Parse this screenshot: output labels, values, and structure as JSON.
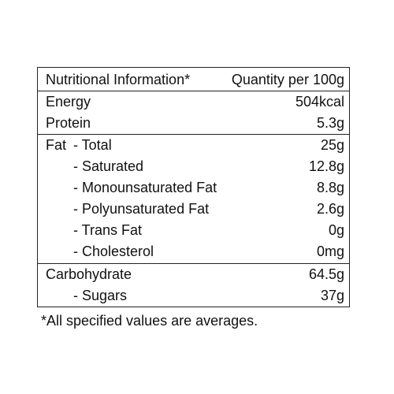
{
  "table": {
    "header": {
      "label": "Nutritional Information*",
      "value": "Quantity per 100g"
    },
    "energy": {
      "label": "Energy",
      "value": "504kcal"
    },
    "protein": {
      "label": "Protein",
      "value": "5.3g"
    },
    "fat": {
      "group_label": "Fat",
      "rows": [
        {
          "label": "- Total",
          "value": "25g"
        },
        {
          "label": "- Saturated",
          "value": "12.8g"
        },
        {
          "label": "- Monounsaturated Fat",
          "value": "8.8g"
        },
        {
          "label": "- Polyunsaturated Fat",
          "value": "2.6g"
        },
        {
          "label": "- Trans Fat",
          "value": "0g"
        },
        {
          "label": "- Cholesterol",
          "value": "0mg"
        }
      ]
    },
    "carbohydrate": {
      "label": "Carbohydrate",
      "value": "64.5g",
      "sub": {
        "label": "- Sugars",
        "value": "37g"
      }
    }
  },
  "footnote": "*All specified values are averages."
}
